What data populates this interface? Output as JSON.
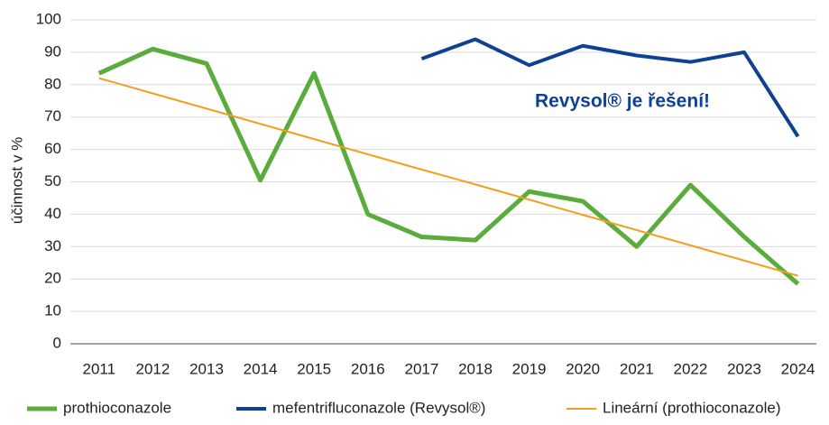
{
  "chart_data": {
    "type": "line",
    "y_label": "účinnost v %",
    "annotation": "Revysol® je řešení!",
    "categories": [
      "2011",
      "2012",
      "2013",
      "2014",
      "2015",
      "2016",
      "2017",
      "2018",
      "2019",
      "2020",
      "2021",
      "2022",
      "2023",
      "2024"
    ],
    "series": [
      {
        "name": "prothioconazole",
        "color": "#5aac3c",
        "width": 5,
        "values": [
          83.5,
          91,
          86.5,
          50.5,
          83.5,
          40,
          33,
          32,
          47,
          44,
          30,
          49,
          33,
          18.5
        ]
      },
      {
        "name": "mefentrifluconazole (Revysol®)",
        "color": "#0e4194",
        "width": 4,
        "values": [
          null,
          null,
          null,
          null,
          null,
          null,
          88,
          94,
          86,
          92,
          89,
          87,
          90,
          64
        ]
      },
      {
        "name": "Lineární (prothioconazole)",
        "color": "#f0a020",
        "width": 2,
        "values": [
          82,
          77.3,
          72.6,
          67.9,
          63.2,
          58.5,
          53.8,
          49.2,
          44.5,
          39.8,
          35.1,
          30.4,
          25.7,
          21
        ]
      }
    ],
    "ylim": [
      0,
      100
    ],
    "yticks": [
      0,
      10,
      20,
      30,
      40,
      50,
      60,
      70,
      80,
      90,
      100
    ],
    "grid": true,
    "legend": "bottom"
  }
}
